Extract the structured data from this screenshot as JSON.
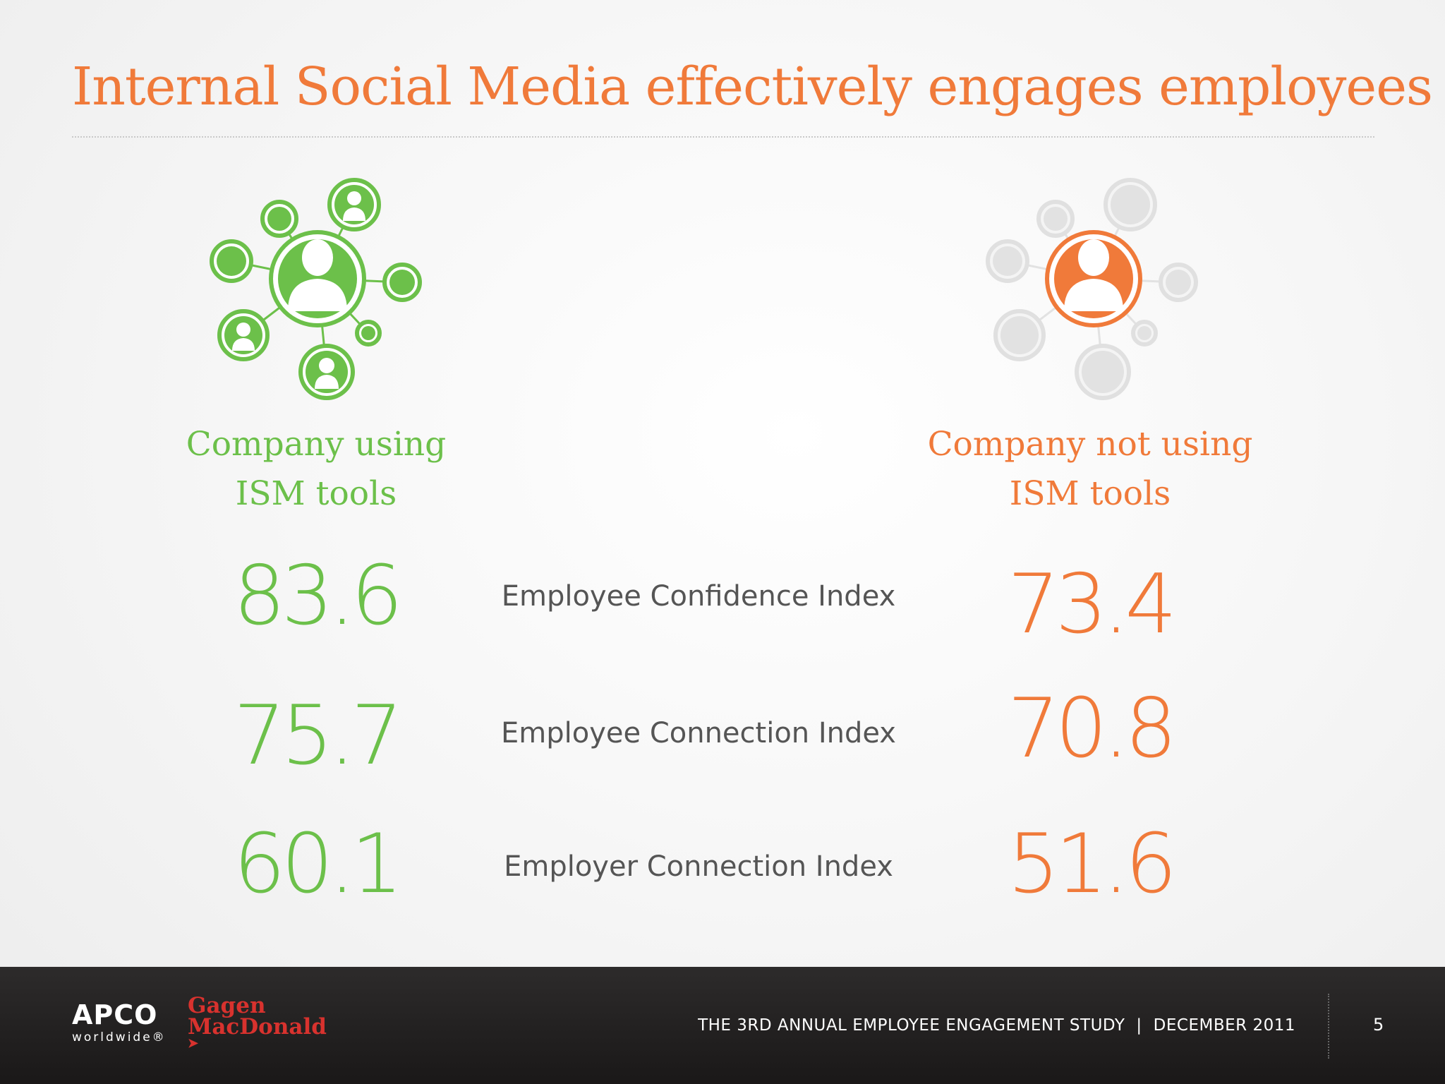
{
  "slide": {
    "title": "Internal Social Media effectively engages employees",
    "colors": {
      "accent_green": "#6cc04a",
      "accent_orange": "#f07a3a",
      "muted_gray": "#d9d9d9"
    }
  },
  "columns": {
    "left": {
      "line1": "Company using",
      "line2": "ISM tools",
      "icon": "people-network-icon"
    },
    "right": {
      "line1": "Company not using",
      "line2": "ISM tools",
      "icon": "people-network-icon"
    }
  },
  "metrics": [
    {
      "label": "Employee Confidence Index",
      "with_ism": "83.6",
      "without_ism": "73.4"
    },
    {
      "label": "Employee Connection Index",
      "with_ism": "75.7",
      "without_ism": "70.8"
    },
    {
      "label": "Employer Connection Index",
      "with_ism": "60.1",
      "without_ism": "51.6"
    }
  ],
  "footer": {
    "apco": "APCO",
    "apco_sub": "worldwide®",
    "gm_line1": "Gagen",
    "gm_line2": "MacDonald",
    "study": "THE 3RD ANNUAL EMPLOYEE ENGAGEMENT STUDY",
    "separator": "|",
    "date": "DECEMBER  2011",
    "page": "5"
  }
}
